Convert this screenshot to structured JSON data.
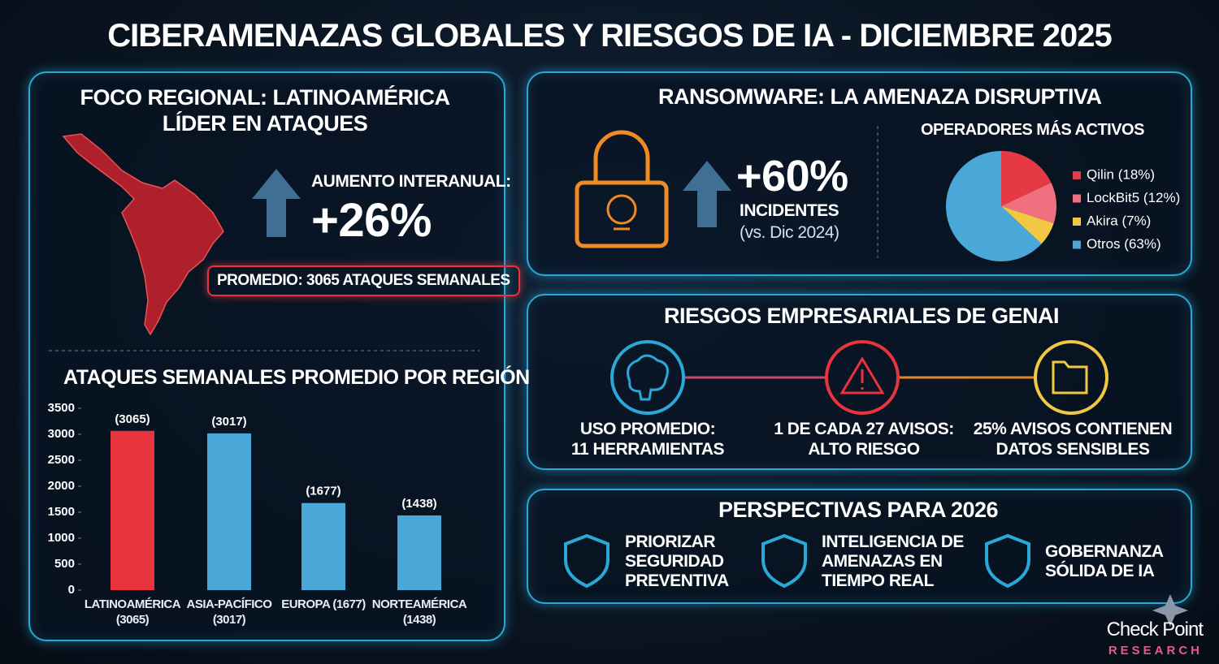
{
  "title": "CIBERAMENAZAS GLOBALES Y RIESGOS DE IA - DICIEMBRE 2025",
  "regional": {
    "title_lines": [
      "FOCO REGIONAL: LATINOAMÉRICA",
      "LÍDER EN ATAQUES"
    ],
    "increase_label": "AUMENTO INTERANUAL:",
    "increase_value": "+26%",
    "average": "PROMEDIO: 3065 ATAQUES SEMANALES"
  },
  "ransomware": {
    "title": "RANSOMWARE: LA AMENAZA DISRUPTIVA",
    "value": "+60%",
    "label": "INCIDENTES",
    "note": "(vs. Dic 2024)",
    "operators_title": "OPERADORES MÁS ACTIVOS"
  },
  "genai": {
    "title": "RIESGOS EMPRESARIALES DE GENAI",
    "items": [
      [
        "USO PROMEDIO:",
        "11 HERRAMIENTAS"
      ],
      [
        "1 DE CADA 27 AVISOS:",
        "ALTO RIESGO"
      ],
      [
        "25% AVISOS CONTIENEN",
        "DATOS SENSIBLES"
      ]
    ]
  },
  "outlook": {
    "title": "PERSPECTIVAS PARA 2026",
    "items": [
      [
        "PRIORIZAR",
        "SEGURIDAD",
        "PREVENTIVA"
      ],
      [
        "INTELIGENCIA DE",
        "AMENAZAS EN",
        "TIEMPO REAL"
      ],
      [
        "GOBERNANZA",
        "SÓLIDA DE IA"
      ]
    ]
  },
  "brand": {
    "name": "Check Point",
    "sub": "RESEARCH"
  },
  "chart_data": [
    {
      "type": "bar",
      "title": "ATAQUES SEMANALES PROMEDIO POR REGIÓN",
      "categories": [
        "LATINOAMÉRICA (3065)",
        "ASIA-PACÍFICO (3017)",
        "EUROPA (1677)",
        "NORTEAMÉRICA (1438)"
      ],
      "values": [
        3065,
        3017,
        1677,
        1438
      ],
      "value_labels": [
        "(3065)",
        "(3017)",
        "(1677)",
        "(1438)"
      ],
      "colors": [
        "#e8343f",
        "#4aa8d8",
        "#4aa8d8",
        "#4aa8d8"
      ],
      "ylim": [
        0,
        3500
      ],
      "yticks": [
        0,
        500,
        1000,
        1500,
        2000,
        2500,
        3000,
        3500
      ],
      "grid": false
    },
    {
      "type": "pie",
      "categories": [
        "Qilin (18%)",
        "LockBit5 (12%)",
        "Akira (7%)",
        "Otros (63%)"
      ],
      "values": [
        18,
        12,
        7,
        63
      ],
      "colors": [
        "#e63946",
        "#f07080",
        "#f2c744",
        "#4aa8d8"
      ],
      "legend": "right"
    }
  ]
}
